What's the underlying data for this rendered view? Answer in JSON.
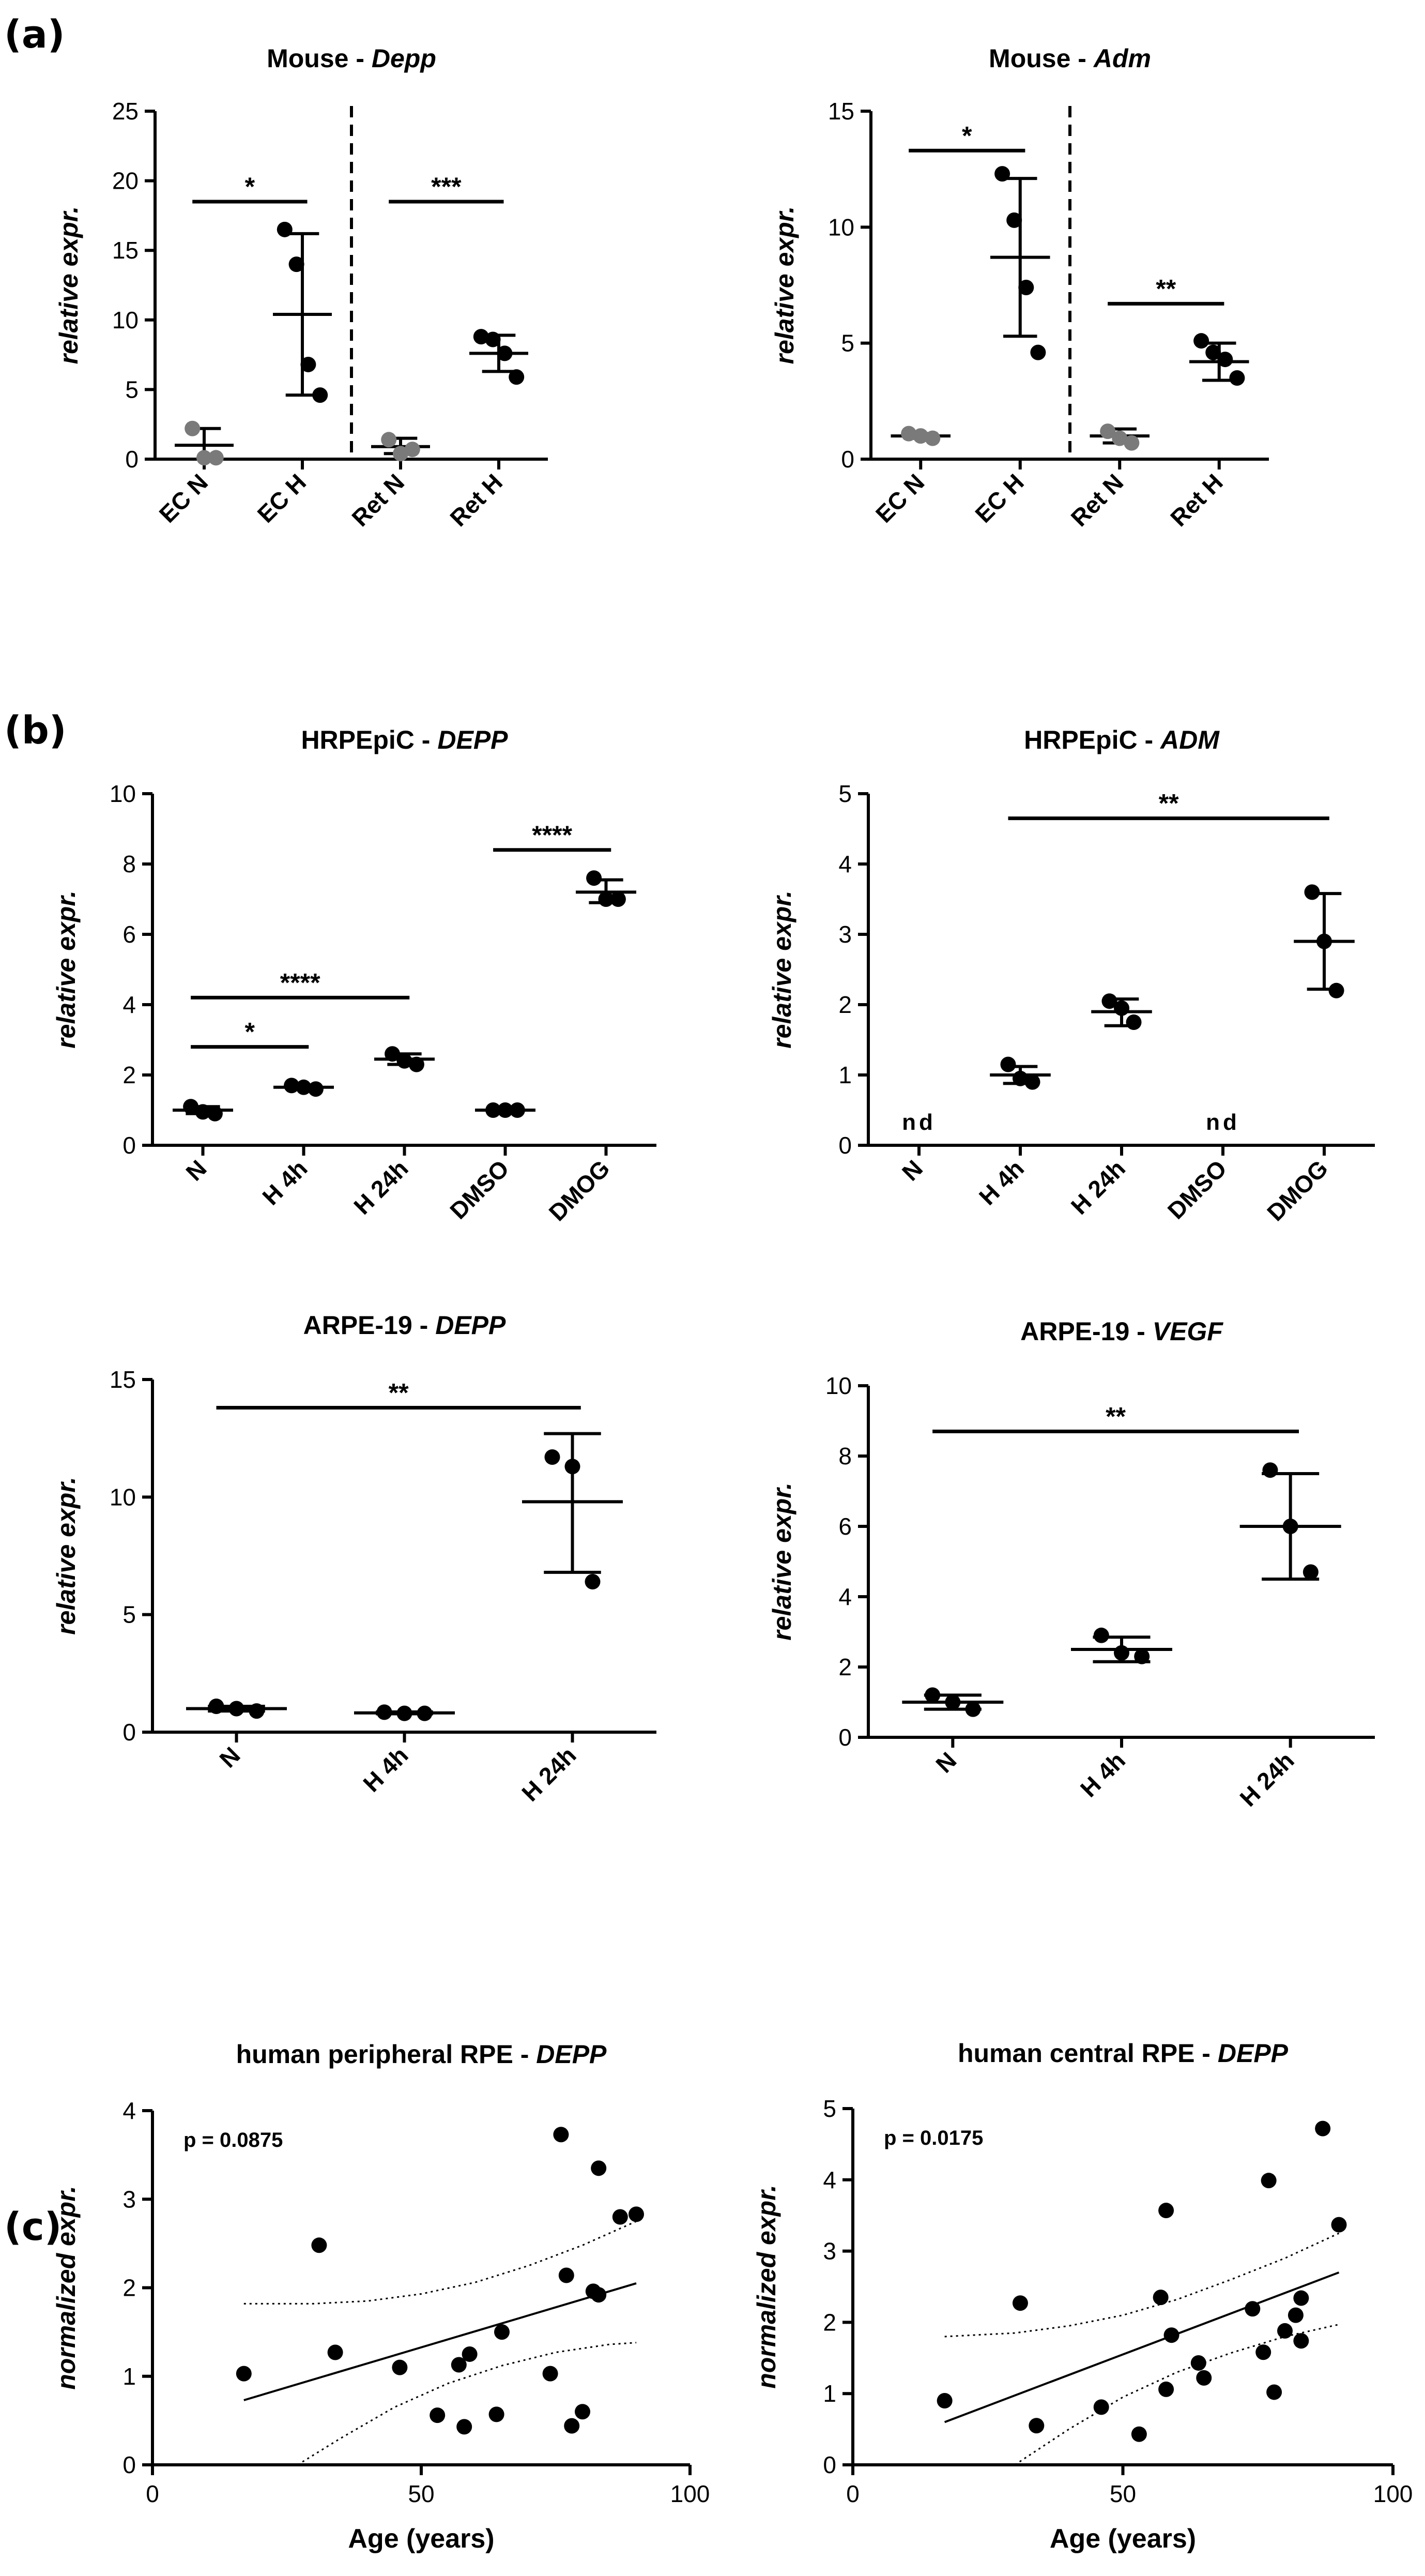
{
  "panels": [
    {
      "label": "(a)",
      "letter": "a"
    },
    {
      "label": "(b)",
      "letter": "b"
    },
    {
      "label": "(c)",
      "letter": "c"
    }
  ],
  "chart_data": [
    {
      "id": "mouse_depp",
      "type": "scatter-dot-plot",
      "panel": "a",
      "title": "Mouse - ",
      "title_gene": "Depp",
      "ylabel": "relative expr.",
      "xlabel": "",
      "ylim": [
        0,
        25
      ],
      "yticks": [
        0,
        5,
        10,
        15,
        20,
        25
      ],
      "categories": [
        "EC N",
        "EC H",
        "Ret N",
        "Ret H"
      ],
      "x_rotated": true,
      "divider_after": 1,
      "groups": [
        {
          "points": [
            2.2,
            0.1,
            0.1
          ],
          "color": "#7a7a7a",
          "mean": 1.0,
          "sd_low": 0.0,
          "sd_high": 2.2
        },
        {
          "points": [
            16.5,
            14.0,
            6.8,
            4.6
          ],
          "color": "#000000",
          "mean": 10.4,
          "sd_low": 4.6,
          "sd_high": 16.2
        },
        {
          "points": [
            1.4,
            0.4,
            0.7
          ],
          "color": "#7a7a7a",
          "mean": 0.9,
          "sd_low": 0.4,
          "sd_high": 1.5
        },
        {
          "points": [
            8.8,
            8.6,
            7.6,
            5.9
          ],
          "color": "#000000",
          "mean": 7.6,
          "sd_low": 6.3,
          "sd_high": 8.9
        }
      ],
      "significance": [
        {
          "from": 0,
          "to": 1,
          "y": 18.5,
          "label": "*"
        },
        {
          "from": 2,
          "to": 3,
          "y": 18.5,
          "label": "***"
        }
      ]
    },
    {
      "id": "mouse_adm",
      "type": "scatter-dot-plot",
      "panel": "a",
      "title": "Mouse - ",
      "title_gene": "Adm",
      "ylabel": "relative expr.",
      "xlabel": "",
      "ylim": [
        0,
        15
      ],
      "yticks": [
        0,
        5,
        10,
        15
      ],
      "categories": [
        "EC N",
        "EC H",
        "Ret N",
        "Ret H"
      ],
      "x_rotated": true,
      "divider_after": 1,
      "groups": [
        {
          "points": [
            1.1,
            1.0,
            0.9
          ],
          "color": "#7a7a7a",
          "mean": 1.0,
          "sd_low": 0.9,
          "sd_high": 1.1
        },
        {
          "points": [
            12.3,
            10.3,
            7.4,
            4.6
          ],
          "color": "#000000",
          "mean": 8.7,
          "sd_low": 5.3,
          "sd_high": 12.1
        },
        {
          "points": [
            1.2,
            0.9,
            0.7
          ],
          "color": "#7a7a7a",
          "mean": 1.0,
          "sd_low": 0.7,
          "sd_high": 1.3
        },
        {
          "points": [
            5.1,
            4.6,
            4.3,
            3.5
          ],
          "color": "#000000",
          "mean": 4.2,
          "sd_low": 3.4,
          "sd_high": 5.0
        }
      ],
      "significance": [
        {
          "from": 0,
          "to": 1,
          "y": 13.3,
          "label": "*"
        },
        {
          "from": 2,
          "to": 3,
          "y": 6.7,
          "label": "**"
        }
      ]
    },
    {
      "id": "hrpepic_depp",
      "type": "scatter-dot-plot",
      "panel": "b",
      "title": "HRPEpiC - ",
      "title_gene": "DEPP",
      "ylabel": "relative expr.",
      "xlabel": "",
      "ylim": [
        0,
        10
      ],
      "yticks": [
        0,
        2,
        4,
        6,
        8,
        10
      ],
      "categories": [
        "N",
        "H 4h",
        "H 24h",
        "DMSO",
        "DMOG"
      ],
      "x_rotated": true,
      "groups": [
        {
          "points": [
            1.1,
            0.95,
            0.9
          ],
          "color": "#000000",
          "mean": 1.0,
          "sd_low": 0.9,
          "sd_high": 1.1
        },
        {
          "points": [
            1.7,
            1.65,
            1.6
          ],
          "color": "#000000",
          "mean": 1.65,
          "sd_low": 1.6,
          "sd_high": 1.7
        },
        {
          "points": [
            2.6,
            2.4,
            2.3
          ],
          "color": "#000000",
          "mean": 2.45,
          "sd_low": 2.3,
          "sd_high": 2.6
        },
        {
          "points": [
            1.0,
            1.0,
            1.0
          ],
          "color": "#000000",
          "mean": 1.0,
          "sd_low": 0.95,
          "sd_high": 1.05
        },
        {
          "points": [
            7.6,
            7.0,
            7.0
          ],
          "color": "#000000",
          "mean": 7.2,
          "sd_low": 6.9,
          "sd_high": 7.55
        }
      ],
      "significance": [
        {
          "from": 0,
          "to": 1,
          "y": 2.8,
          "label": "*"
        },
        {
          "from": 0,
          "to": 2,
          "y": 4.2,
          "label": "****"
        },
        {
          "from": 3,
          "to": 4,
          "y": 8.4,
          "label": "****"
        }
      ]
    },
    {
      "id": "hrpepic_adm",
      "type": "scatter-dot-plot",
      "panel": "b",
      "title": "HRPEpiC - ",
      "title_gene": "ADM",
      "ylabel": "relative expr.",
      "xlabel": "",
      "ylim": [
        0,
        5
      ],
      "yticks": [
        0,
        1,
        2,
        3,
        4,
        5
      ],
      "categories": [
        "N",
        "H 4h",
        "H 24h",
        "DMSO",
        "DMOG"
      ],
      "x_rotated": true,
      "nd_label": "nd",
      "groups": [
        {
          "nd": true
        },
        {
          "points": [
            1.15,
            0.95,
            0.9
          ],
          "color": "#000000",
          "mean": 1.0,
          "sd_low": 0.88,
          "sd_high": 1.12
        },
        {
          "points": [
            2.05,
            1.95,
            1.75
          ],
          "color": "#000000",
          "mean": 1.9,
          "sd_low": 1.7,
          "sd_high": 2.08
        },
        {
          "nd": true
        },
        {
          "points": [
            3.6,
            2.9,
            2.2
          ],
          "color": "#000000",
          "mean": 2.9,
          "sd_low": 2.22,
          "sd_high": 3.58
        }
      ],
      "significance": [
        {
          "from": 1,
          "to": 4,
          "y": 4.65,
          "label": "**"
        }
      ]
    },
    {
      "id": "arpe19_depp",
      "type": "scatter-dot-plot",
      "panel": "b",
      "title": "ARPE-19 - ",
      "title_gene": "DEPP",
      "ylabel": "relative expr.",
      "xlabel": "",
      "ylim": [
        0,
        15
      ],
      "yticks": [
        0,
        5,
        10,
        15
      ],
      "categories": [
        "N",
        "H 4h",
        "H 24h"
      ],
      "x_rotated": true,
      "groups": [
        {
          "points": [
            1.1,
            1.0,
            0.9
          ],
          "color": "#000000",
          "mean": 1.0,
          "sd_low": 0.9,
          "sd_high": 1.1
        },
        {
          "points": [
            0.85,
            0.8,
            0.8
          ],
          "color": "#000000",
          "mean": 0.82,
          "sd_low": 0.78,
          "sd_high": 0.86
        },
        {
          "points": [
            11.7,
            11.3,
            6.4
          ],
          "color": "#000000",
          "mean": 9.8,
          "sd_low": 6.8,
          "sd_high": 12.7
        }
      ],
      "significance": [
        {
          "from": 0,
          "to": 2,
          "y": 13.8,
          "label": "**"
        }
      ]
    },
    {
      "id": "arpe19_vegf",
      "type": "scatter-dot-plot",
      "panel": "b",
      "title": "ARPE-19 - ",
      "title_gene": "VEGF",
      "ylabel": "relative expr.",
      "xlabel": "",
      "ylim": [
        0,
        10
      ],
      "yticks": [
        0,
        2,
        4,
        6,
        8,
        10
      ],
      "categories": [
        "N",
        "H 4h",
        "H 24h"
      ],
      "x_rotated": true,
      "groups": [
        {
          "points": [
            1.2,
            1.0,
            0.8
          ],
          "color": "#000000",
          "mean": 1.0,
          "sd_low": 0.8,
          "sd_high": 1.2
        },
        {
          "points": [
            2.9,
            2.4,
            2.3
          ],
          "color": "#000000",
          "mean": 2.5,
          "sd_low": 2.15,
          "sd_high": 2.85
        },
        {
          "points": [
            7.6,
            6.0,
            4.7
          ],
          "color": "#000000",
          "mean": 6.0,
          "sd_low": 4.5,
          "sd_high": 7.5
        }
      ],
      "significance": [
        {
          "from": 0,
          "to": 2,
          "y": 8.7,
          "label": "**"
        }
      ]
    },
    {
      "id": "peripheral_rpe_depp",
      "type": "scatter",
      "panel": "c",
      "title": "human peripheral RPE - ",
      "title_gene": "DEPP",
      "ylabel": "normalized expr.",
      "xlabel": "Age (years)",
      "xlim": [
        0,
        100
      ],
      "xticks": [
        0,
        50,
        100
      ],
      "ylim": [
        0,
        4
      ],
      "yticks": [
        0,
        1,
        2,
        3,
        4
      ],
      "annotation": "p = 0.0875",
      "points": [
        {
          "x": 17,
          "y": 1.03
        },
        {
          "x": 31,
          "y": 2.48
        },
        {
          "x": 34,
          "y": 1.27
        },
        {
          "x": 46,
          "y": 1.1
        },
        {
          "x": 53,
          "y": 0.56
        },
        {
          "x": 57,
          "y": 1.13
        },
        {
          "x": 58,
          "y": 0.43
        },
        {
          "x": 59,
          "y": 1.25
        },
        {
          "x": 64,
          "y": 0.57
        },
        {
          "x": 65,
          "y": 1.5
        },
        {
          "x": 74,
          "y": 1.03
        },
        {
          "x": 76,
          "y": 3.73
        },
        {
          "x": 77,
          "y": 2.14
        },
        {
          "x": 78,
          "y": 0.44
        },
        {
          "x": 80,
          "y": 0.6
        },
        {
          "x": 82,
          "y": 1.96
        },
        {
          "x": 83,
          "y": 3.35
        },
        {
          "x": 83,
          "y": 1.92
        },
        {
          "x": 87,
          "y": 2.8
        },
        {
          "x": 90,
          "y": 2.83
        }
      ],
      "fit_line": {
        "x": [
          17,
          90
        ],
        "y": [
          0.73,
          2.05
        ]
      },
      "ci_upper": {
        "x": [
          17,
          30,
          40,
          50,
          60,
          70,
          80,
          90
        ],
        "y": [
          1.82,
          1.82,
          1.85,
          1.93,
          2.06,
          2.25,
          2.48,
          2.75
        ]
      },
      "ci_lower": {
        "x": [
          27,
          35,
          45,
          55,
          65,
          75,
          85,
          90
        ],
        "y": [
          0.0,
          0.3,
          0.65,
          0.92,
          1.12,
          1.27,
          1.36,
          1.38
        ]
      }
    },
    {
      "id": "central_rpe_depp",
      "type": "scatter",
      "panel": "c",
      "title": "human central RPE - ",
      "title_gene": "DEPP",
      "ylabel": "normalized expr.",
      "xlabel": "Age (years)",
      "xlim": [
        0,
        100
      ],
      "xticks": [
        0,
        50,
        100
      ],
      "ylim": [
        0,
        5
      ],
      "yticks": [
        0,
        1,
        2,
        3,
        4,
        5
      ],
      "annotation": "p = 0.0175",
      "points": [
        {
          "x": 17,
          "y": 0.9
        },
        {
          "x": 31,
          "y": 2.27
        },
        {
          "x": 34,
          "y": 0.55
        },
        {
          "x": 46,
          "y": 0.81
        },
        {
          "x": 53,
          "y": 0.43
        },
        {
          "x": 57,
          "y": 2.35
        },
        {
          "x": 58,
          "y": 3.57
        },
        {
          "x": 58,
          "y": 1.06
        },
        {
          "x": 59,
          "y": 1.82
        },
        {
          "x": 64,
          "y": 1.43
        },
        {
          "x": 65,
          "y": 1.22
        },
        {
          "x": 74,
          "y": 2.19
        },
        {
          "x": 76,
          "y": 1.58
        },
        {
          "x": 77,
          "y": 3.99
        },
        {
          "x": 78,
          "y": 1.02
        },
        {
          "x": 80,
          "y": 1.88
        },
        {
          "x": 82,
          "y": 2.1
        },
        {
          "x": 83,
          "y": 2.34
        },
        {
          "x": 83,
          "y": 1.74
        },
        {
          "x": 87,
          "y": 4.72
        },
        {
          "x": 90,
          "y": 3.37
        }
      ],
      "fit_line": {
        "x": [
          17,
          90
        ],
        "y": [
          0.6,
          2.7
        ]
      },
      "ci_upper": {
        "x": [
          17,
          30,
          40,
          50,
          60,
          70,
          80,
          90
        ],
        "y": [
          1.8,
          1.85,
          1.95,
          2.1,
          2.32,
          2.6,
          2.9,
          3.25
        ]
      },
      "ci_lower": {
        "x": [
          30,
          40,
          50,
          60,
          70,
          80,
          90
        ],
        "y": [
          0.0,
          0.5,
          0.95,
          1.3,
          1.57,
          1.8,
          1.97
        ]
      }
    }
  ]
}
